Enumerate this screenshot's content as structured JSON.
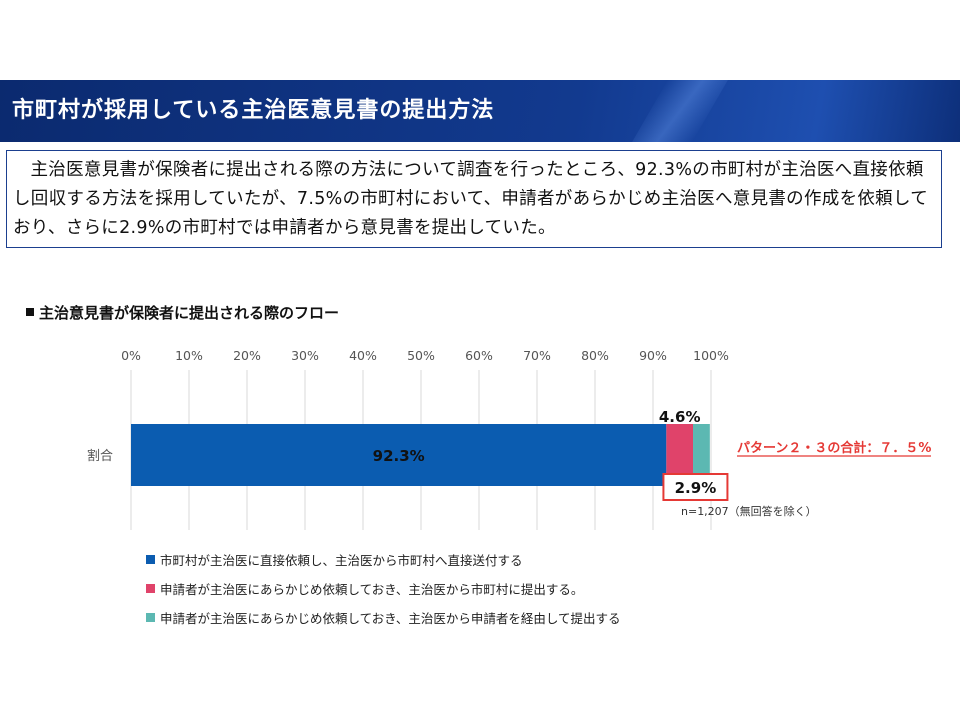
{
  "header": {
    "title": "市町村が採用している主治医意見書の提出方法"
  },
  "summary": {
    "text": "主治医意見書が保険者に提出される際の方法について調査を行ったところ、92.3%の市町村が主治医へ直接依頼し回収する方法を採用していたが、7.5%の市町村において、申請者があらかじめ主治医へ意見書の作成を依頼しており、さらに2.9%の市町村では申請者から意見書を提出していた。"
  },
  "section": {
    "heading": "主治意見書が保険者に提出される際のフロー"
  },
  "chart_data": {
    "type": "bar",
    "orientation": "horizontal",
    "stacked": true,
    "categories": [
      "割合"
    ],
    "series": [
      {
        "name": "市町村が主治医に直接依頼し、主治医から市町村へ直接送付する",
        "values": [
          92.3
        ],
        "label": "92.3%",
        "color": "#0b5cb0"
      },
      {
        "name": "申請者が主治医にあらかじめ依頼しておき、主治医から市町村に提出する。",
        "values": [
          4.6
        ],
        "label": "4.6%",
        "color": "#e0436a"
      },
      {
        "name": "申請者が主治医にあらかじめ依頼しておき、主治医から申請者を経由して提出する",
        "values": [
          2.9
        ],
        "label": "2.9%",
        "color": "#5cb8b2"
      }
    ],
    "xlim": [
      0,
      100
    ],
    "x_ticks": [
      "0%",
      "10%",
      "20%",
      "30%",
      "40%",
      "50%",
      "60%",
      "70%",
      "80%",
      "90%",
      "100%"
    ],
    "tick_values": [
      0,
      10,
      20,
      30,
      40,
      50,
      60,
      70,
      80,
      90,
      100
    ],
    "grid": true,
    "annotation": "パターン２・３の合計：７．５%",
    "annotation_color": "#e53935",
    "note": "n=1,207（無回答を除く）"
  }
}
